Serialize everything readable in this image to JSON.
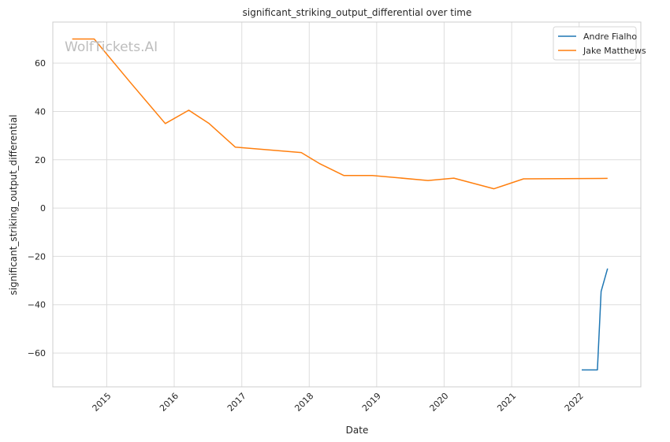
{
  "chart_data": {
    "type": "line",
    "title": "significant_striking_output_differential over time",
    "xlabel": "Date",
    "ylabel": "significant_striking_output_differential",
    "watermark": "WolfTickets.AI",
    "x_ticks": [
      "2015",
      "2016",
      "2017",
      "2018",
      "2019",
      "2020",
      "2021",
      "2022"
    ],
    "y_ticks": [
      60,
      40,
      20,
      0,
      -20,
      -40,
      -60
    ],
    "y_tick_labels": [
      "60",
      "40",
      "20",
      "0",
      "−20",
      "−40",
      "−60"
    ],
    "xlim": [
      "2014-03-15",
      "2022-12-01"
    ],
    "ylim": [
      -74,
      77
    ],
    "grid": true,
    "legend_position": "top-right",
    "series": [
      {
        "name": "Andre Fialho",
        "color": "#1f77b4",
        "points": [
          {
            "x": "2022-01-15",
            "y": -67
          },
          {
            "x": "2022-04-10",
            "y": -67
          },
          {
            "x": "2022-04-30",
            "y": -34.5
          },
          {
            "x": "2022-06-04",
            "y": -25
          }
        ]
      },
      {
        "name": "Jake Matthews",
        "color": "#ff7f0e",
        "points": [
          {
            "x": "2014-06-28",
            "y": 70
          },
          {
            "x": "2014-10-25",
            "y": 70
          },
          {
            "x": "2015-05-09",
            "y": 52
          },
          {
            "x": "2015-11-14",
            "y": 35
          },
          {
            "x": "2016-03-20",
            "y": 40.5
          },
          {
            "x": "2016-07-08",
            "y": 35
          },
          {
            "x": "2016-11-27",
            "y": 25.2
          },
          {
            "x": "2017-11-19",
            "y": 23
          },
          {
            "x": "2018-02-24",
            "y": 18.5
          },
          {
            "x": "2018-07-07",
            "y": 13.5
          },
          {
            "x": "2018-12-08",
            "y": 13.5
          },
          {
            "x": "2019-10-06",
            "y": 11.4
          },
          {
            "x": "2020-02-23",
            "y": 12.4
          },
          {
            "x": "2020-09-27",
            "y": 8
          },
          {
            "x": "2021-03-06",
            "y": 12.1
          },
          {
            "x": "2022-06-04",
            "y": 12.3
          }
        ]
      }
    ]
  }
}
